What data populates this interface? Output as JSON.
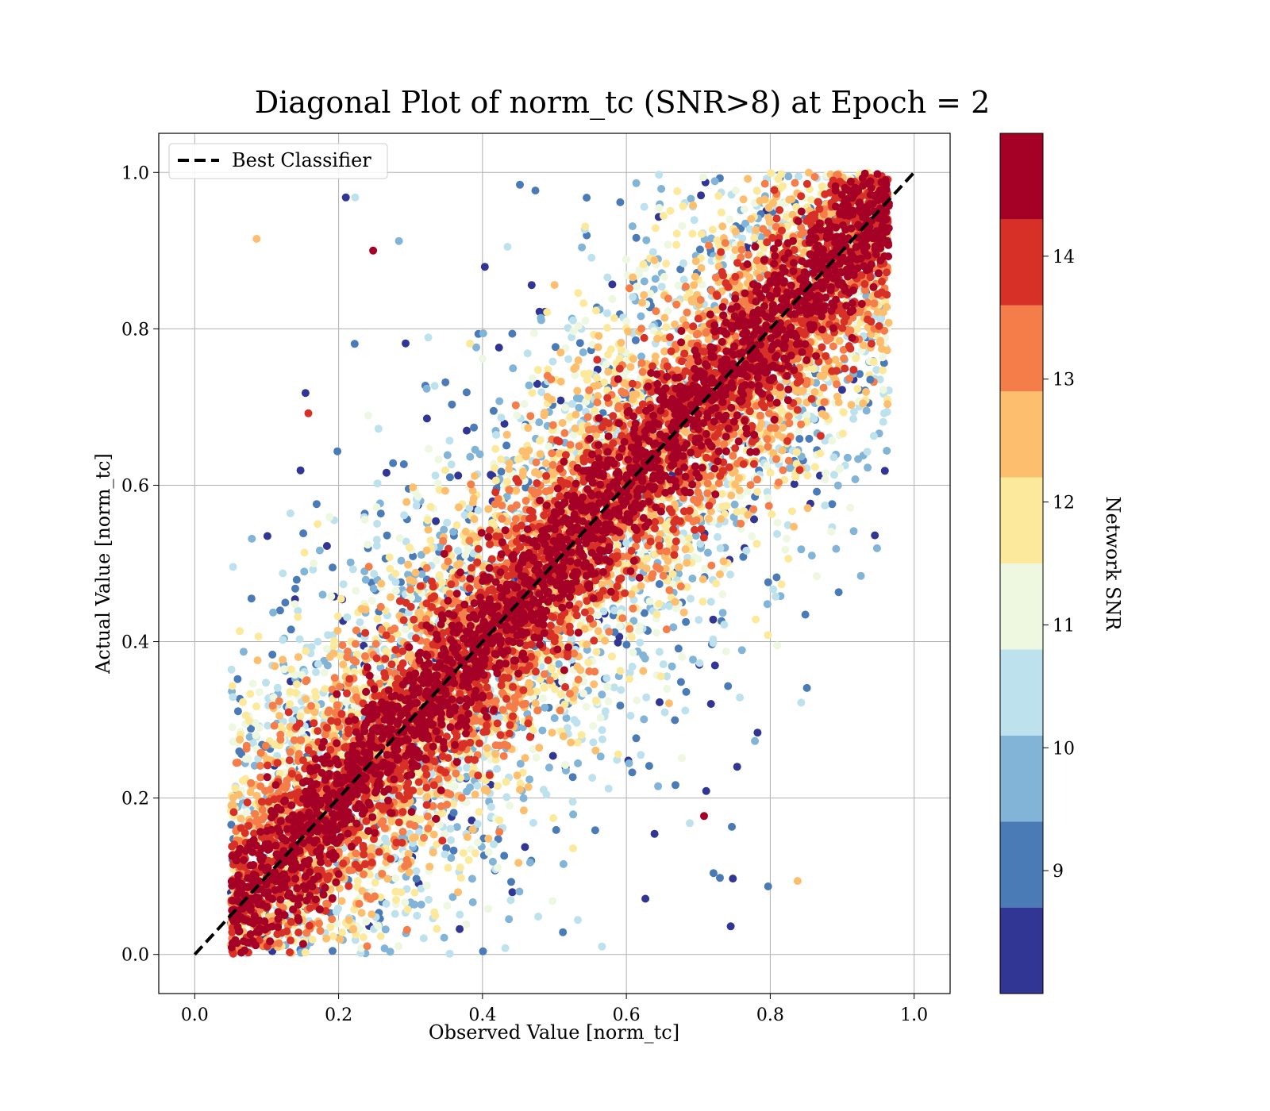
{
  "figure": {
    "title": "Diagonal Plot of norm_tc (SNR>8) at Epoch = 2"
  },
  "chart_data": {
    "type": "scatter",
    "title": "Diagonal Plot of norm_tc (SNR>8) at Epoch = 2",
    "xlabel": "Observed Value [norm_tc]",
    "ylabel": "Actual Value [norm_tc]",
    "xlim": [
      -0.05,
      1.05
    ],
    "ylim": [
      -0.05,
      1.05
    ],
    "x_ticks": [
      0.0,
      0.2,
      0.4,
      0.6,
      0.8,
      1.0
    ],
    "x_tick_labels": [
      "0.0",
      "0.2",
      "0.4",
      "0.6",
      "0.8",
      "1.0"
    ],
    "y_ticks": [
      0.0,
      0.2,
      0.4,
      0.6,
      0.8,
      1.0
    ],
    "y_tick_labels": [
      "0.0",
      "0.2",
      "0.4",
      "0.6",
      "0.8",
      "1.0"
    ],
    "grid": true,
    "legend": {
      "placement": "upper-left",
      "entries": [
        {
          "label": "Best Classifier",
          "style": "black dashed line"
        }
      ]
    },
    "reference_line": {
      "label": "Best Classifier",
      "x": [
        0.0,
        1.0
      ],
      "y": [
        0.0,
        1.0
      ],
      "color": "#000000",
      "dash": true
    },
    "scatter_description_points": {
      "note_free_data": "approximate distribution: dense high-SNR band along y=x (width ~0.15), lower-SNR points spread wider; observed x confined to ~0.05-0.97",
      "points": [
        {
          "x": 0.086,
          "y": 0.915,
          "snr": 12.3
        },
        {
          "x": 0.248,
          "y": 0.9,
          "snr": 14.5
        },
        {
          "x": 0.21,
          "y": 0.968,
          "snr": 8.3
        },
        {
          "x": 0.223,
          "y": 0.968,
          "snr": 10.5
        },
        {
          "x": 0.154,
          "y": 0.718,
          "snr": 8.3
        },
        {
          "x": 0.158,
          "y": 0.692,
          "snr": 14.0
        },
        {
          "x": 0.147,
          "y": 0.619,
          "snr": 8.3
        },
        {
          "x": 0.101,
          "y": 0.535,
          "snr": 8.3
        },
        {
          "x": 0.133,
          "y": 0.564,
          "snr": 10.3
        },
        {
          "x": 0.838,
          "y": 0.094,
          "snr": 12.8
        },
        {
          "x": 0.797,
          "y": 0.087,
          "snr": 9.2
        },
        {
          "x": 0.843,
          "y": 0.322,
          "snr": 10.5
        },
        {
          "x": 0.754,
          "y": 0.24,
          "snr": 8.3
        },
        {
          "x": 0.711,
          "y": 0.209,
          "snr": 8.3
        },
        {
          "x": 0.708,
          "y": 0.177,
          "snr": 14.5
        },
        {
          "x": 0.796,
          "y": 0.448,
          "snr": 9.5
        },
        {
          "x": 0.843,
          "y": 0.518,
          "snr": 9.8
        },
        {
          "x": 0.939,
          "y": 0.735,
          "snr": 9.3
        },
        {
          "x": 0.944,
          "y": 0.663,
          "snr": 10.5
        },
        {
          "x": 0.745,
          "y": 0.036,
          "snr": 8.3
        },
        {
          "x": 0.748,
          "y": 0.097,
          "snr": 8.3
        },
        {
          "x": 0.73,
          "y": 0.098,
          "snr": 9.0
        }
      ]
    },
    "colorbar": {
      "label": "Network SNR",
      "ticks": [
        9,
        10,
        11,
        12,
        13,
        14
      ],
      "tick_labels": [
        "9",
        "10",
        "11",
        "12",
        "13",
        "14"
      ],
      "range": [
        8.0,
        15.0
      ],
      "bins": [
        {
          "from": 8.0,
          "to": 8.7,
          "color": "#313695"
        },
        {
          "from": 8.7,
          "to": 9.4,
          "color": "#4a7bb7"
        },
        {
          "from": 9.4,
          "to": 10.1,
          "color": "#81b4d6"
        },
        {
          "from": 10.1,
          "to": 10.8,
          "color": "#bde2ee"
        },
        {
          "from": 10.8,
          "to": 11.5,
          "color": "#eef7df"
        },
        {
          "from": 11.5,
          "to": 12.2,
          "color": "#fde99c"
        },
        {
          "from": 12.2,
          "to": 12.9,
          "color": "#fdbe6e"
        },
        {
          "from": 12.9,
          "to": 13.6,
          "color": "#f57d4a"
        },
        {
          "from": 13.6,
          "to": 14.3,
          "color": "#d73027"
        },
        {
          "from": 14.3,
          "to": 15.0,
          "color": "#a50026"
        }
      ]
    }
  }
}
